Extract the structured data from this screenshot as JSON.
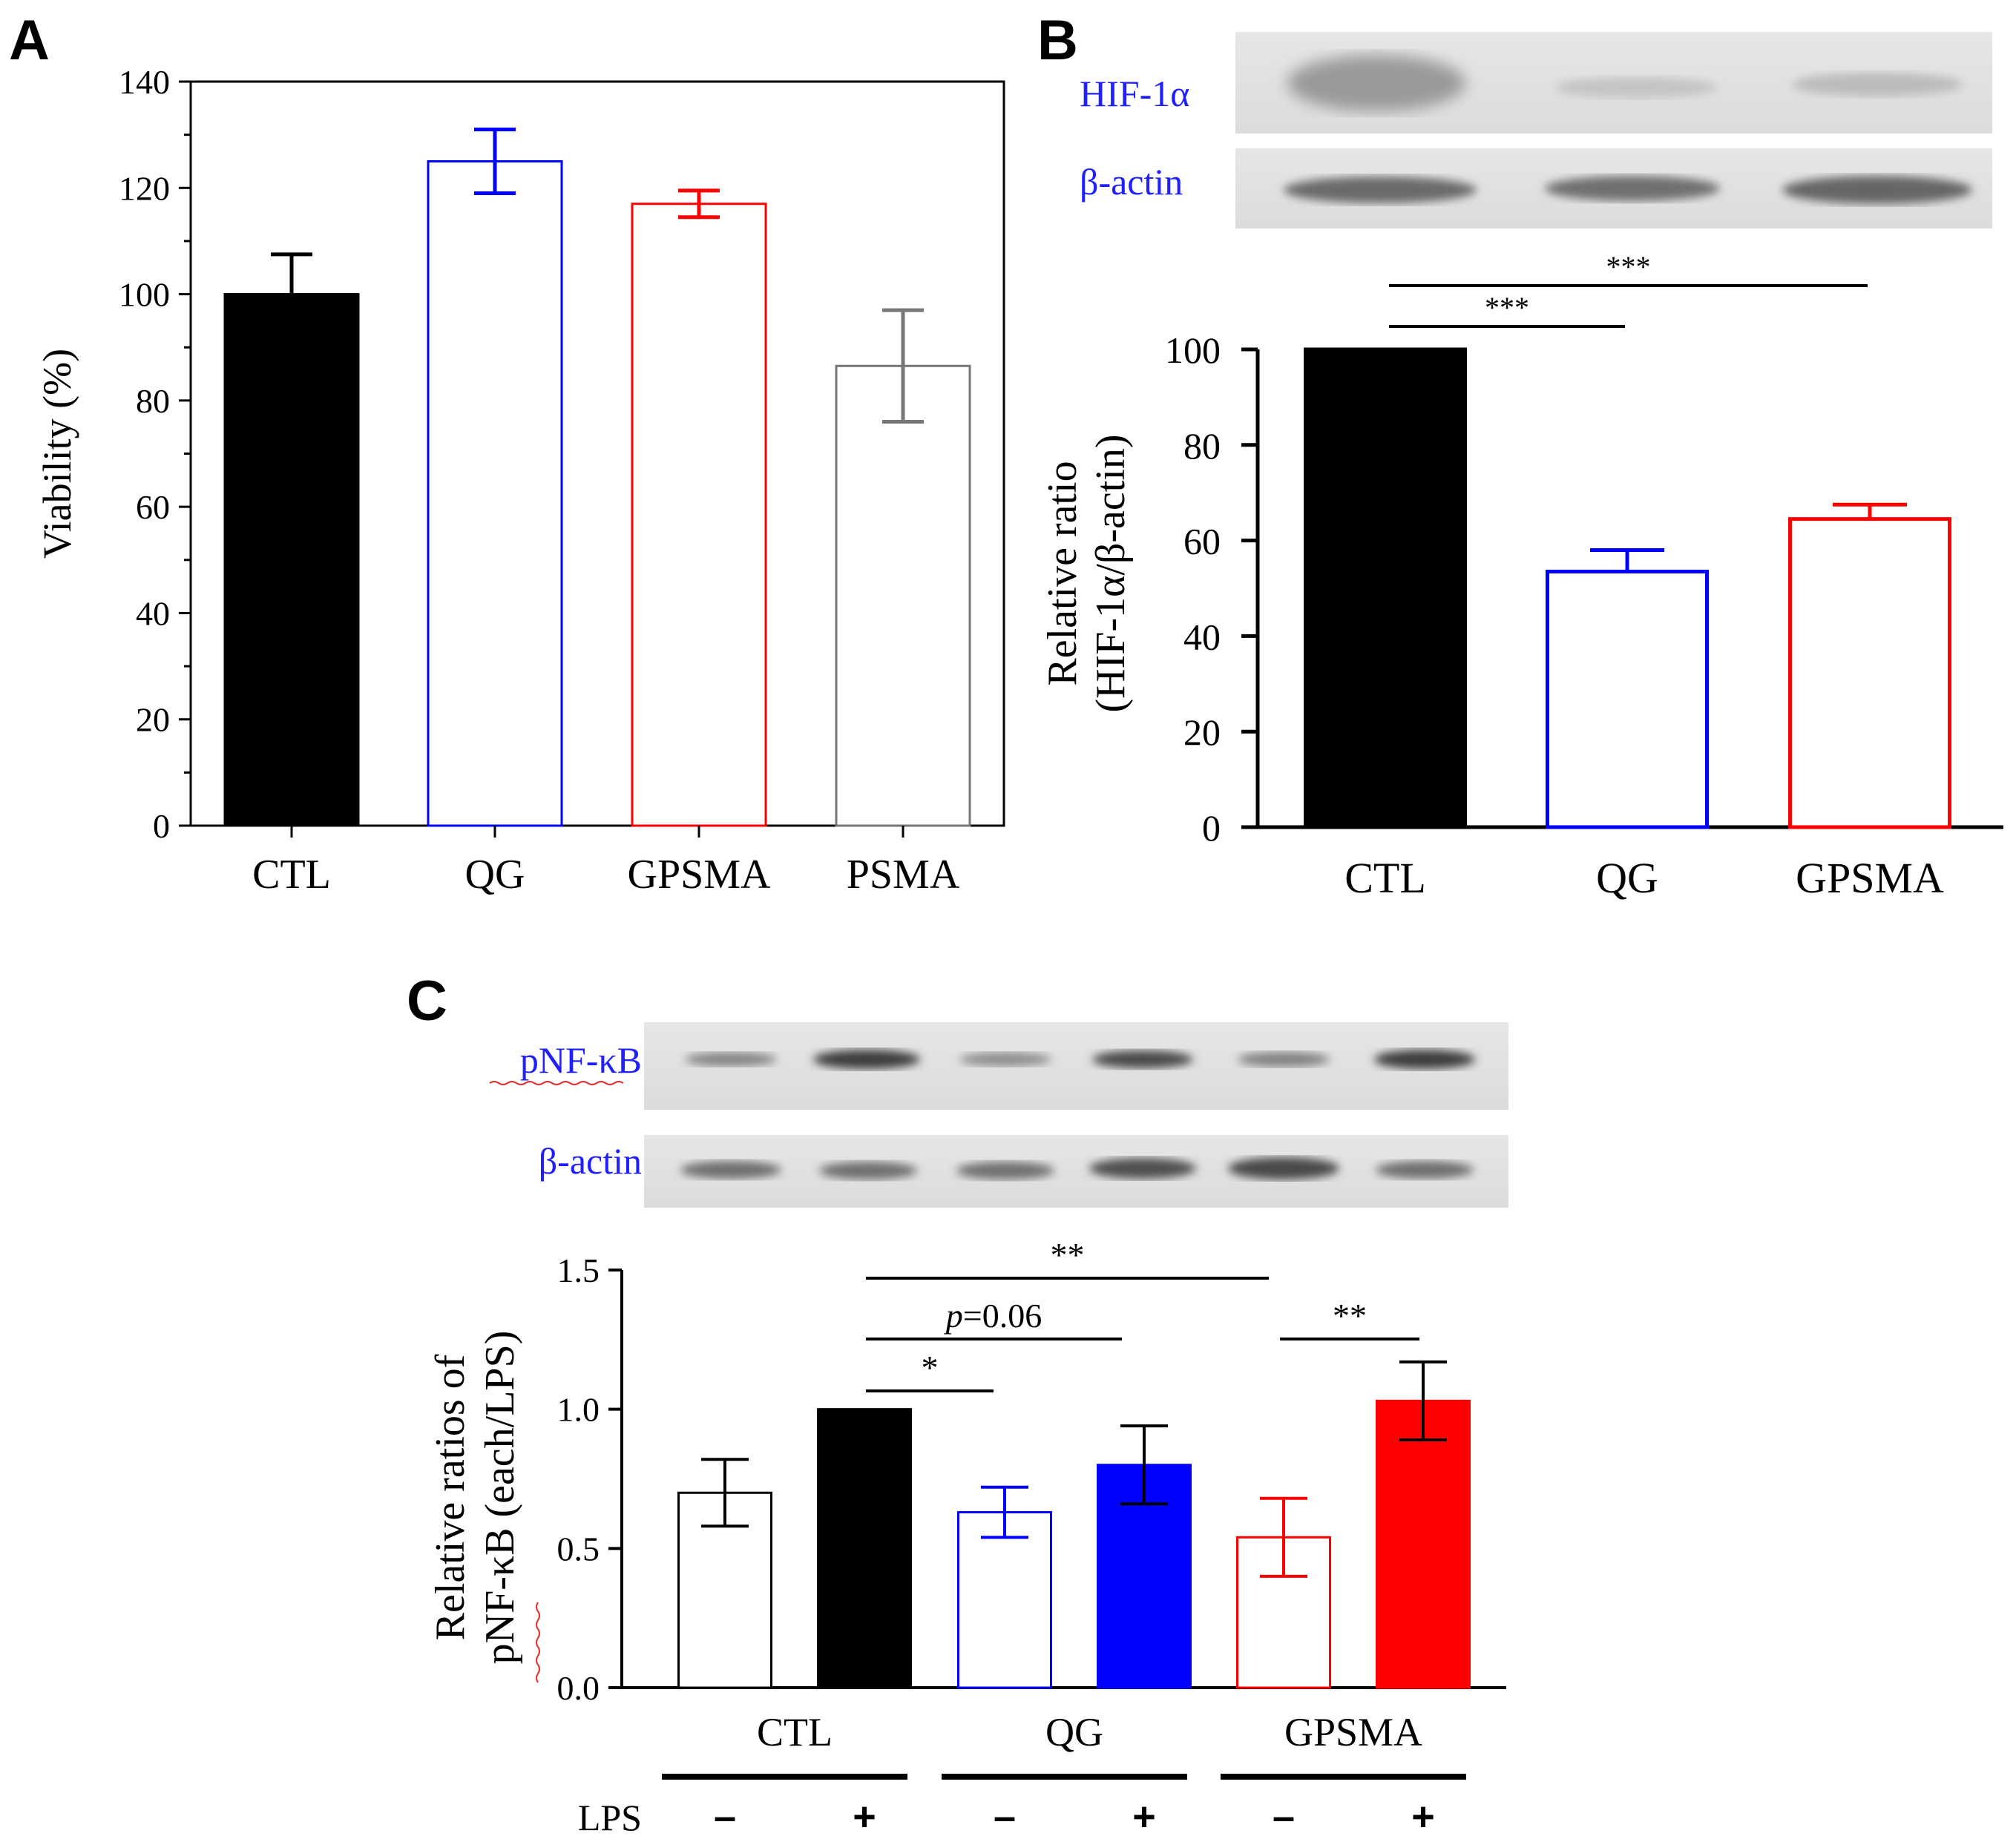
{
  "panel_labels": {
    "a": "A",
    "b": "B",
    "c": "C"
  },
  "colors": {
    "black": "#000000",
    "blue": "#0000ff",
    "red": "#ff0000",
    "gray": "#777777",
    "label_blue": "#2020ff"
  },
  "blots": {
    "b_labels": [
      "HIF-1α",
      "β-actin"
    ],
    "c_labels": [
      "pNF-κB",
      "β-actin"
    ],
    "lps_label": "LPS",
    "lps_signs": [
      "–",
      "+",
      "–",
      "+",
      "–",
      "+"
    ]
  },
  "chart_data": [
    {
      "id": "A",
      "type": "bar",
      "title": "",
      "categories": [
        "CTL",
        "QG",
        "GPSMA",
        "PSMA"
      ],
      "values": [
        100,
        125,
        117,
        86.5
      ],
      "errors": [
        7.5,
        6,
        2.5,
        10.5
      ],
      "error_direction": [
        "up",
        "both",
        "both",
        "both"
      ],
      "fill": [
        "solid",
        "open",
        "open",
        "open"
      ],
      "bar_colors": [
        "#000000",
        "#0000ff",
        "#ff0000",
        "#777777"
      ],
      "xlabel": "",
      "ylabel": "Viability (%)",
      "ylim": [
        0,
        140
      ],
      "yticks": [
        "0",
        "20",
        "40",
        "60",
        "80",
        "100",
        "120",
        "140"
      ],
      "ytick_values": [
        0,
        20,
        40,
        60,
        80,
        100,
        120,
        140
      ],
      "grid": false,
      "frame": "box"
    },
    {
      "id": "B",
      "type": "bar",
      "title": "",
      "categories": [
        "CTL",
        "QG",
        "GPSMA"
      ],
      "values": [
        100,
        53.5,
        64.5
      ],
      "errors": [
        0,
        4.5,
        3
      ],
      "error_direction": [
        "up",
        "up",
        "up"
      ],
      "fill": [
        "solid",
        "open",
        "open"
      ],
      "bar_colors": [
        "#000000",
        "#0000ff",
        "#ff0000"
      ],
      "xlabel": "",
      "ylabel": [
        "Relative ratio",
        "(HIF-1α/β-actin)"
      ],
      "ylim": [
        0,
        100
      ],
      "yticks": [
        "0",
        "20",
        "40",
        "60",
        "80",
        "100"
      ],
      "ytick_values": [
        0,
        20,
        40,
        60,
        80,
        100
      ],
      "grid": false,
      "frame": "axes",
      "significance": [
        {
          "from": 0,
          "to": 1,
          "label": "***"
        },
        {
          "from": 0,
          "to": 2,
          "label": "***"
        }
      ]
    },
    {
      "id": "C",
      "type": "bar",
      "title": "",
      "categories": [
        "CTL",
        "QG",
        "GPSMA"
      ],
      "lps": [
        "–",
        "+"
      ],
      "series": [
        {
          "name": "LPS –",
          "values": [
            0.7,
            0.63,
            0.54
          ],
          "errors": [
            0.12,
            0.09,
            0.14
          ],
          "fill": "open"
        },
        {
          "name": "LPS +",
          "values": [
            1.0,
            0.8,
            1.03
          ],
          "errors": [
            0.0,
            0.14,
            0.14
          ],
          "fill": "solid"
        }
      ],
      "group_colors": [
        "#000000",
        "#0000ff",
        "#ff0000"
      ],
      "xlabel": "",
      "ylabel": [
        "Relative ratios of",
        "pNF-κB (each/LPS)"
      ],
      "ylim": [
        0,
        1.5
      ],
      "yticks": [
        "0.0",
        "0.5",
        "1.0",
        "1.5"
      ],
      "ytick_values": [
        0,
        0.5,
        1.0,
        1.5
      ],
      "grid": false,
      "frame": "axes",
      "significance": [
        {
          "from": 1,
          "to": 2,
          "label": "*",
          "italic_prefix": "",
          "rest": ""
        },
        {
          "from": 1,
          "to": 3,
          "label": "",
          "italic_prefix": "p",
          "rest": "=0.06"
        },
        {
          "from": 1,
          "to": 4,
          "label": "**",
          "italic_prefix": "",
          "rest": ""
        },
        {
          "from": 4,
          "to": 5,
          "label": "**",
          "italic_prefix": "",
          "rest": ""
        }
      ]
    }
  ]
}
